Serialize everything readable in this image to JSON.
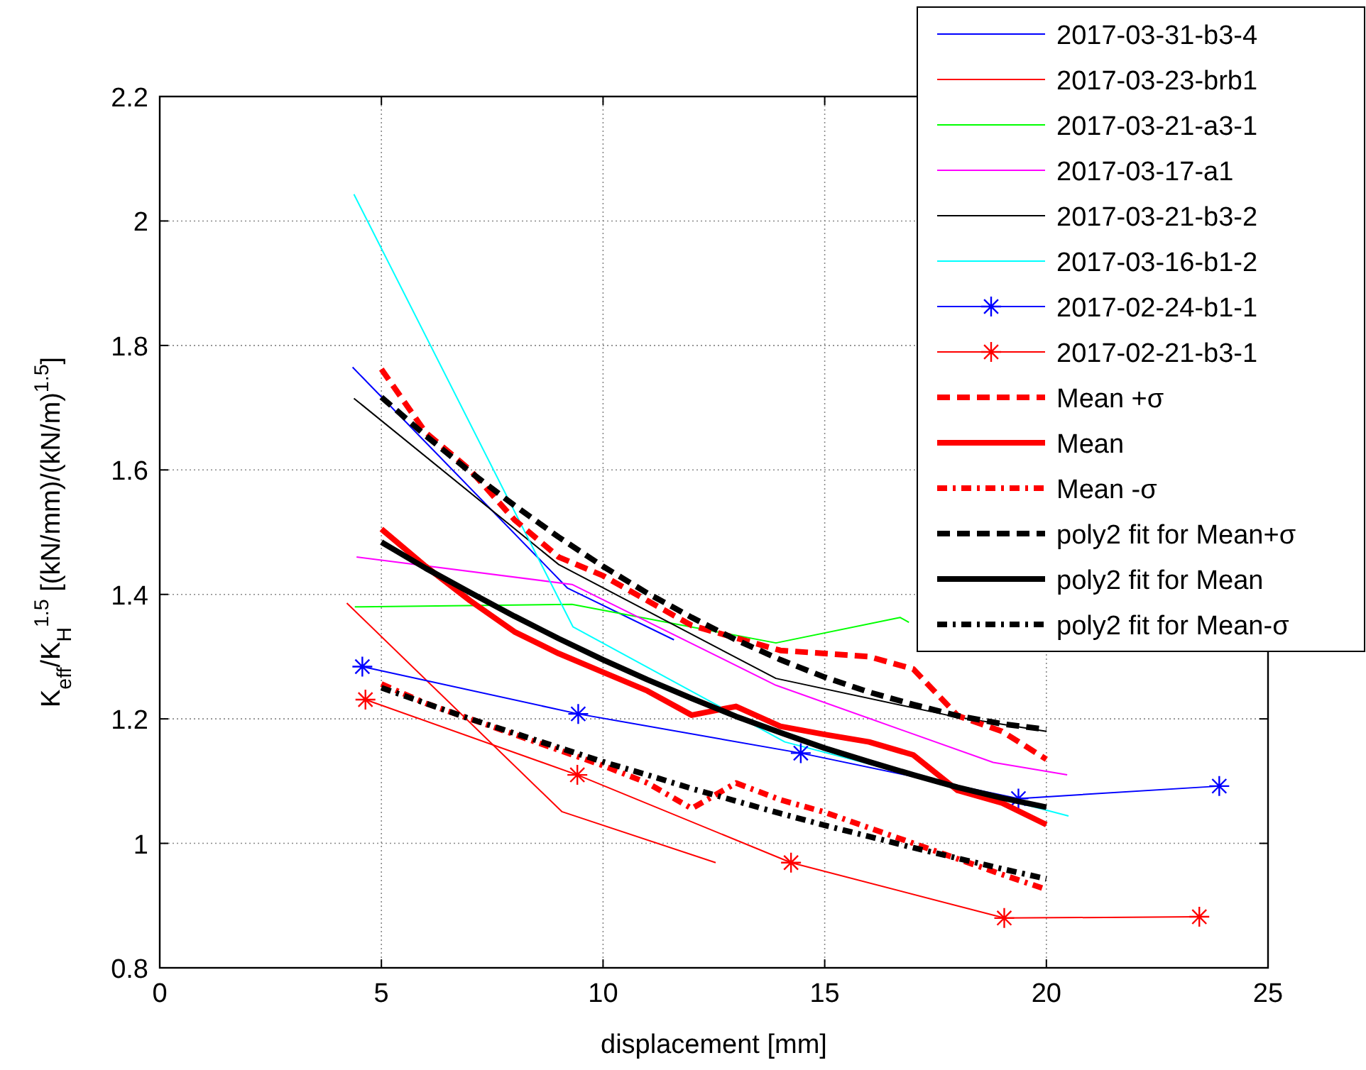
{
  "chart_data": {
    "type": "line",
    "xlabel": "displacement [mm]",
    "ylabel": "K$_{eff}$/K$_{H}$$^{1.5}$ [(kN/mm)/(kN/m)$^{1.5}$]",
    "x": [
      5,
      6,
      7,
      8,
      9,
      10,
      11,
      12,
      13,
      14,
      15,
      16,
      17,
      18,
      19,
      20
    ],
    "xlim": [
      0,
      25
    ],
    "xticks": [
      0,
      5,
      10,
      15,
      20,
      25
    ],
    "ylim": [
      0.8,
      2.2
    ],
    "yticks": [
      0.8,
      1,
      1.2,
      1.4,
      1.6,
      1.8,
      2,
      2.2
    ],
    "grid": true,
    "legend": "top right",
    "series": [
      {
        "name": "2017-03-31-b3-4",
        "color": "#0000ff",
        "x": [
          4.35,
          9.2,
          11.6
        ],
        "values": [
          1.765,
          1.41,
          1.327
        ],
        "line_style": "solid",
        "marker": "none"
      },
      {
        "name": "2017-03-23-brb1",
        "color": "#ff0000",
        "x": [
          4.22,
          9.07,
          12.54
        ],
        "values": [
          1.386,
          1.051,
          0.969
        ],
        "line_style": "solid",
        "marker": "none"
      },
      {
        "name": "2017-03-21-a3-1",
        "color": "#00ff00",
        "x": [
          4.4,
          9.3,
          13.9,
          16.7,
          16.9
        ],
        "values": [
          1.38,
          1.384,
          1.322,
          1.363,
          1.355
        ],
        "line_style": "solid",
        "marker": "none"
      },
      {
        "name": "2017-03-17-a1",
        "color": "#ff00ff",
        "x": [
          4.44,
          9.3,
          13.9,
          18.8,
          20.47
        ],
        "values": [
          1.46,
          1.416,
          1.254,
          1.13,
          1.11
        ],
        "line_style": "solid",
        "marker": "none"
      },
      {
        "name": "2017-03-21-b3-2",
        "color": "#000000",
        "x": [
          4.38,
          9.0,
          13.9,
          17.9,
          20.0
        ],
        "values": [
          1.715,
          1.448,
          1.265,
          1.204,
          1.18
        ],
        "line_style": "solid",
        "marker": "none"
      },
      {
        "name": "2017-03-16-b1-2",
        "color": "#00ffff",
        "x": [
          4.38,
          9.32,
          14.1,
          20.5
        ],
        "values": [
          2.043,
          1.348,
          1.163,
          1.044
        ],
        "line_style": "solid",
        "marker": "none"
      },
      {
        "name": "2017-02-24-b1-1",
        "color": "#0000ff",
        "x": [
          4.57,
          9.44,
          14.46,
          19.37,
          23.9
        ],
        "values": [
          1.284,
          1.208,
          1.145,
          1.072,
          1.092
        ],
        "line_style": "solid",
        "marker": "cross"
      },
      {
        "name": "2017-02-21-b3-1",
        "color": "#ff0000",
        "x": [
          4.64,
          9.42,
          14.24,
          19.05,
          23.45
        ],
        "values": [
          1.231,
          1.11,
          0.969,
          0.88,
          0.882
        ],
        "line_style": "solid",
        "marker": "cross"
      },
      {
        "name": "Mean +σ",
        "color": "#ff0000",
        "values": [
          1.762,
          1.66,
          1.6,
          1.52,
          1.46,
          1.43,
          1.39,
          1.35,
          1.33,
          1.31,
          1.305,
          1.3,
          1.28,
          1.205,
          1.18,
          1.135
        ],
        "line_style": "dashed",
        "marker": "none"
      },
      {
        "name": "Mean",
        "color": "#ff0000",
        "values": [
          1.505,
          1.445,
          1.39,
          1.34,
          1.305,
          1.275,
          1.245,
          1.206,
          1.22,
          1.188,
          1.175,
          1.163,
          1.142,
          1.085,
          1.065,
          1.03
        ],
        "line_style": "solid",
        "marker": "none"
      },
      {
        "name": "Mean -σ",
        "color": "#ff0000",
        "values": [
          1.256,
          1.225,
          1.2,
          1.175,
          1.15,
          1.125,
          1.097,
          1.056,
          1.097,
          1.07,
          1.05,
          1.025,
          1.0,
          0.975,
          0.95,
          0.926
        ],
        "line_style": "dashdot",
        "marker": "none"
      },
      {
        "name": "poly2 fit for Mean+σ",
        "color": "#000000",
        "values": [
          1.717,
          1.655,
          1.597,
          1.543,
          1.492,
          1.445,
          1.402,
          1.363,
          1.327,
          1.295,
          1.267,
          1.243,
          1.223,
          1.205,
          1.192,
          1.183
        ],
        "line_style": "dashed",
        "marker": "none"
      },
      {
        "name": "poly2 fit for Mean",
        "color": "#000000",
        "values": [
          1.484,
          1.442,
          1.403,
          1.365,
          1.329,
          1.295,
          1.263,
          1.233,
          1.204,
          1.178,
          1.153,
          1.131,
          1.11,
          1.09,
          1.073,
          1.058
        ],
        "line_style": "solid",
        "marker": "none"
      },
      {
        "name": "poly2 fit for Mean-σ",
        "color": "#000000",
        "values": [
          1.25,
          1.225,
          1.2,
          1.177,
          1.154,
          1.131,
          1.11,
          1.088,
          1.068,
          1.048,
          1.029,
          1.011,
          0.993,
          0.976,
          0.959,
          0.943
        ],
        "line_style": "dashdot",
        "marker": "none"
      }
    ]
  }
}
